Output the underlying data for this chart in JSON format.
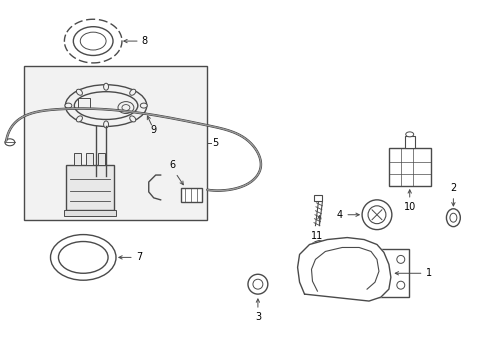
{
  "bg_color": "#ffffff",
  "line_color": "#4a4a4a",
  "lw": 1.0,
  "fig_width": 4.9,
  "fig_height": 3.6,
  "dpi": 100,
  "label_fontsize": 7.0
}
